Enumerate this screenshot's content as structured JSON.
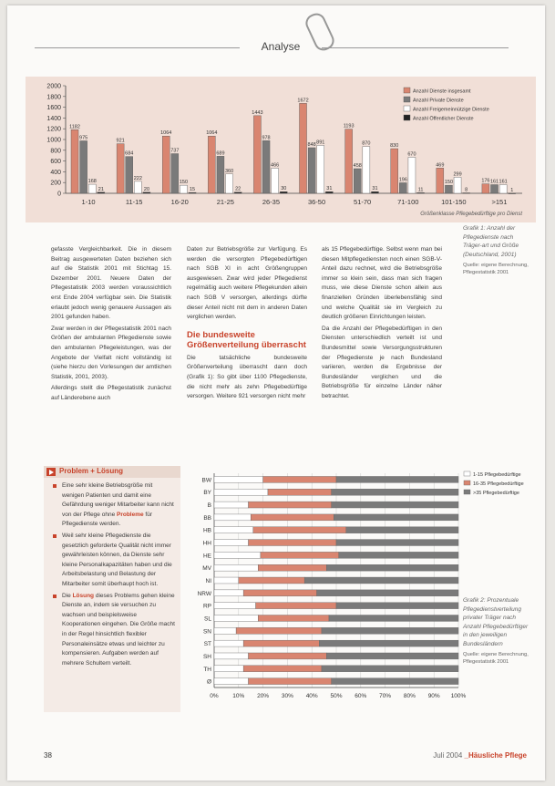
{
  "section": {
    "title": "Analyse"
  },
  "chart_data": [
    {
      "type": "bar",
      "categories": [
        "1-10",
        "11-15",
        "16-20",
        "21-25",
        "26-35",
        "36-50",
        "51-70",
        "71-100",
        "101-150",
        ">151"
      ],
      "series": [
        {
          "name": "Anzahl Dienste insgesamt",
          "color": "#d98570",
          "values": [
            1182,
            921,
            1064,
            1064,
            1443,
            1672,
            1193,
            830,
            469,
            176
          ]
        },
        {
          "name": "Anzahl Private Dienste",
          "color": "#7a7a7a",
          "values": [
            975,
            684,
            737,
            689,
            978,
            848,
            458,
            196,
            150,
            161
          ]
        },
        {
          "name": "Anzahl Freigemeinnützige Dienste",
          "color": "#ffffff",
          "values": [
            168,
            222,
            150,
            360,
            466,
            891,
            870,
            670,
            299,
            161
          ]
        },
        {
          "name": "Anzahl Öffentlicher Dienste",
          "color": "#222222",
          "values": [
            21,
            20,
            15,
            22,
            30,
            31,
            31,
            11,
            8,
            1
          ]
        }
      ],
      "value_labels": [
        [
          "1182",
          "921",
          "1064",
          "1064",
          "1443",
          "1672",
          "1193",
          "830",
          "469",
          "176"
        ],
        [
          "975",
          "684",
          "737",
          "689",
          "978",
          "848",
          "458",
          "196",
          "150",
          "161"
        ],
        [
          "168",
          "222",
          "150",
          "360",
          "466",
          "891",
          "870",
          "670",
          "299",
          "161"
        ],
        [
          "21",
          "20",
          "15",
          "22",
          "30",
          "31",
          "31",
          "11",
          "8",
          "1"
        ]
      ],
      "ylim": [
        0,
        2000
      ],
      "yticks": [
        0,
        200,
        400,
        600,
        800,
        1000,
        1200,
        1400,
        1600,
        1800,
        2000
      ],
      "xlabel": "Größenklasse Pflegebedürftige pro Dienst",
      "grid": false,
      "legend_position": "top-right"
    },
    {
      "type": "bar",
      "orientation": "horizontal-stacked-percent",
      "categories": [
        "BW",
        "BY",
        "B",
        "BB",
        "HB",
        "HH",
        "HE",
        "MV",
        "NI",
        "NRW",
        "RP",
        "SL",
        "SN",
        "ST",
        "SH",
        "TH",
        "Ø"
      ],
      "series": [
        {
          "name": "1-15 Pflegebedürftige",
          "color": "#ffffff",
          "values": [
            20,
            22,
            14,
            15,
            16,
            14,
            19,
            18,
            10,
            12,
            17,
            18,
            9,
            12,
            14,
            12,
            14
          ]
        },
        {
          "name": "16-35 Pflegebedürftige",
          "color": "#d98570",
          "values": [
            30,
            26,
            34,
            34,
            38,
            36,
            32,
            28,
            27,
            30,
            33,
            29,
            35,
            31,
            32,
            32,
            34
          ]
        },
        {
          "name": ">35 Pflegebedürftige",
          "color": "#7a7a7a",
          "values": [
            50,
            52,
            52,
            51,
            46,
            50,
            49,
            54,
            63,
            58,
            50,
            53,
            56,
            57,
            54,
            56,
            52
          ]
        }
      ],
      "xlim": [
        0,
        100
      ],
      "xticks": [
        "0%",
        "10%",
        "20%",
        "30%",
        "40%",
        "50%",
        "60%",
        "70%",
        "80%",
        "90%",
        "100%"
      ],
      "grid": true,
      "legend_position": "top-right"
    }
  ],
  "captions": {
    "chart1": "Grafik 1: Anzahl der Pflegedienste nach Träger-art und Größe (Deutschland, 2001)",
    "chart1_source": "Quelle: eigene Berechnung, Pflegestatistik 2001",
    "chart2": "Grafik 2: Prozentuale Pflegedienstverteilung privater Träger nach Anzahl Pflegebedürftiger in den jeweiligen Bundesländern",
    "chart2_source": "Quelle: eigene Berechnung, Pflegestatistik 2001"
  },
  "article": {
    "col1": [
      "gefasste Vergleichbarkeit. Die in diesem Beitrag ausgewerteten Daten beziehen sich auf die Statistik 2001 mit Stichtag 15. Dezember 2001. Neuere Daten der Pflegestatistik 2003 werden voraussichtlich erst Ende 2004 verfügbar sein. Die Statistik erlaubt jedoch wenig genauere Aussagen als 2001 gefunden haben.",
      "Zwar werden in der Pflegestatistik 2001 nach Größen der ambulanten Pflegedienste sowie den ambulanten Pflegeleistungen, was der Angebote der Vielfalt nicht vollständig ist (siehe hierzu den Vorlesungen der amtlichen Statistik, 2001, 2003).",
      "Allerdings stellt die Pflegestatistik zunächst auf Länderebene auch"
    ],
    "col2": [
      "Daten zur Betriebsgröße zur Verfügung. Es werden die versorgten Pflegebedürftigen nach SGB XI in acht Größengruppen ausgewiesen. Zwar wird jeder Pflegedienst regelmäßig auch weitere Pflegekunden allein nach SGB V versorgen, allerdings dürfte dieser Anteil nicht mit dem in anderen Daten verglichen werden."
    ],
    "col2_heading": "Die bundesweite Größenverteilung überrascht",
    "col2_after": [
      "Die tatsächliche bundesweite Größenverteilung überrascht dann doch (Grafik 1): So gibt über 1100 Pflegedienste, die nicht mehr als zehn Pflegebedürftige versorgen. Weitere 921 versorgen nicht mehr"
    ],
    "col3": [
      "als 15 Pflegebedürftige. Selbst wenn man bei diesen Mitpflegediensten noch einen SGB-V-Anteil dazu rechnet, wird die Betriebsgröße immer so klein sein, dass man sich fragen muss, wie diese Dienste schon allein aus finanziellen Gründen überlebensfähig sind und welche Qualität sie im Vergleich zu deutlich größeren Einrichtungen leisten.",
      "Da die Anzahl der Pflegebedürftigen in den Diensten unterschiedlich verteilt ist und Bundesmittel sowie Versorgungsstrukturen der Pflegedienste je nach Bundesland variieren, werden die Ergebnisse der Bundesländer verglichen und die Betriebsgröße für einzelne Länder näher betrachtet."
    ]
  },
  "box": {
    "title": "Problem + Lösung",
    "paragraphs": [
      {
        "text": "Eine sehr kleine Betriebsgröße mit wenigen Patienten und damit eine Gefährdung weniger Mitarbeiter kann nicht von der Pflege ohne ",
        "bold": "Probleme",
        "tail": " für Pflegedienste werden."
      },
      {
        "text": "Weil sehr kleine Pflegedienste die gesetzlich geforderte Qualität nicht immer gewährleisten können, da Dienste sehr kleine Personalkapazitäten haben und die Arbeitsbelastung und Belastung der Mitarbeiter somit überhaupt hoch ist.",
        "bold": "",
        "tail": ""
      },
      {
        "text": "Die ",
        "bold": "Lösung",
        "tail": " dieses Problems gehen kleine Dienste an, indem sie versuchen zu wachsen und beispielsweise Kooperationen eingehen. Die Größe macht in der Regel hinsichtlich flexibler Personaleinsätze etwas und leichter zu kompensieren. Aufgaben werden auf mehrere Schultern verteilt."
      }
    ]
  },
  "footer": {
    "page_number": "38",
    "issue": "Juli 2004",
    "magazine": "_Häusliche Pflege"
  }
}
